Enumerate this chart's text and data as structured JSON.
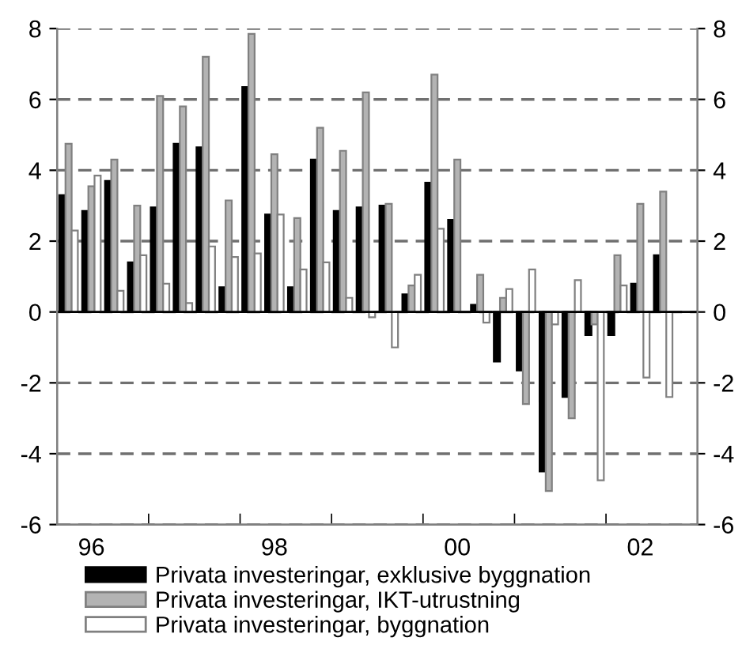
{
  "chart_data": {
    "type": "bar",
    "categories": [
      null,
      "96",
      null,
      null,
      null,
      null,
      null,
      null,
      null,
      "98",
      null,
      null,
      null,
      null,
      null,
      null,
      null,
      "00",
      null,
      null,
      null,
      null,
      null,
      null,
      null,
      "02",
      null,
      null
    ],
    "series": [
      {
        "name": "Privata investeringar, exklusive byggnation",
        "color": "#000000",
        "values": [
          3.3,
          2.85,
          3.7,
          1.4,
          2.95,
          4.75,
          4.65,
          0.7,
          6.35,
          2.75,
          0.7,
          4.3,
          2.85,
          2.95,
          3.0,
          0.5,
          3.65,
          2.6,
          0.2,
          -1.4,
          -1.65,
          -4.5,
          -2.4,
          -0.65,
          -0.65,
          0.8,
          1.6,
          null
        ]
      },
      {
        "name": "Privata investeringar, IKT-utrustning",
        "color": "#b3b3b3",
        "values": [
          4.75,
          3.55,
          4.3,
          3.0,
          6.1,
          5.8,
          7.2,
          3.15,
          7.85,
          4.45,
          2.65,
          5.2,
          4.55,
          6.2,
          3.05,
          0.75,
          6.7,
          4.3,
          1.05,
          0.4,
          -2.6,
          -5.05,
          -3.0,
          -0.35,
          1.6,
          3.05,
          3.4,
          null
        ]
      },
      {
        "name": "Privata investeringar, byggnation",
        "color": "#ffffff",
        "values": [
          2.3,
          3.85,
          0.6,
          1.6,
          0.8,
          0.25,
          1.85,
          1.55,
          1.65,
          2.75,
          1.2,
          1.4,
          0.4,
          -0.15,
          -1.0,
          1.05,
          2.35,
          null,
          -0.3,
          0.65,
          1.2,
          -0.35,
          0.9,
          -4.75,
          0.75,
          -1.85,
          -2.4,
          null
        ]
      }
    ],
    "ylim": [
      -6,
      8
    ],
    "yticks": [
      -6,
      -4,
      -2,
      0,
      2,
      4,
      6,
      8
    ],
    "y2lim": [
      -6,
      8
    ],
    "y2ticks": [
      -6,
      -4,
      -2,
      0,
      2,
      4,
      6,
      8
    ],
    "grid": "y",
    "legend": "bottom"
  }
}
